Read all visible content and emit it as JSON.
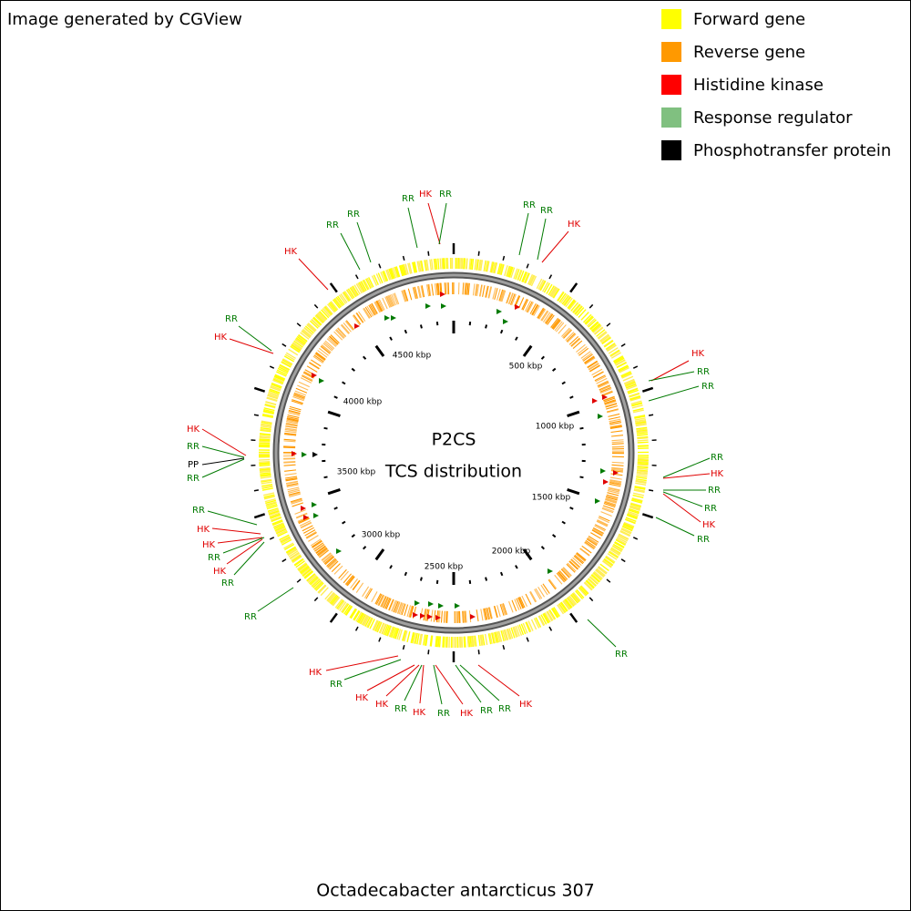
{
  "header": {
    "credit": "Image generated by CGView"
  },
  "legend": [
    {
      "label": "Forward gene",
      "color": "#ffff00"
    },
    {
      "label": "Reverse gene",
      "color": "#ff9900"
    },
    {
      "label": "Histidine kinase",
      "color": "#ff0000"
    },
    {
      "label": "Response regulator",
      "color": "#80c080"
    },
    {
      "label": "Phosphotransfer protein",
      "color": "#000000"
    }
  ],
  "center": {
    "title": "P2CS",
    "subtitle": "TCS distribution"
  },
  "axis_labels": [
    "500 kbp",
    "1000 kbp",
    "1500 kbp",
    "2000 kbp",
    "2500 kbp",
    "3000 kbp",
    "3500 kbp",
    "4000 kbp",
    "4500 kbp"
  ],
  "features": [
    {
      "label": "RR",
      "color": "#007a00"
    },
    {
      "label": "HK",
      "color": "#e00000"
    },
    {
      "label": "RR",
      "color": "#007a00"
    },
    {
      "label": "RR",
      "color": "#007a00"
    },
    {
      "label": "RR",
      "color": "#007a00"
    },
    {
      "label": "HK",
      "color": "#e00000"
    },
    {
      "label": "RR",
      "color": "#007a00"
    },
    {
      "label": "RR",
      "color": "#007a00"
    },
    {
      "label": "HK",
      "color": "#e00000"
    },
    {
      "label": "RR",
      "color": "#007a00"
    },
    {
      "label": "HK",
      "color": "#e00000"
    },
    {
      "label": "HK",
      "color": "#e00000"
    },
    {
      "label": "RR",
      "color": "#007a00"
    },
    {
      "label": "RR",
      "color": "#007a00"
    },
    {
      "label": "RR",
      "color": "#007a00"
    },
    {
      "label": "HK",
      "color": "#e00000"
    },
    {
      "label": "RR",
      "color": "#007a00"
    },
    {
      "label": "RR",
      "color": "#007a00"
    },
    {
      "label": "HK",
      "color": "#e00000"
    },
    {
      "label": "RR",
      "color": "#007a00"
    },
    {
      "label": "RR",
      "color": "#007a00"
    },
    {
      "label": "HK",
      "color": "#e00000"
    },
    {
      "label": "RR",
      "color": "#007a00"
    },
    {
      "label": "PP",
      "color": "#000000"
    },
    {
      "label": "RR",
      "color": "#007a00"
    },
    {
      "label": "RR",
      "color": "#007a00"
    },
    {
      "label": "HK",
      "color": "#e00000"
    },
    {
      "label": "HK",
      "color": "#e00000"
    },
    {
      "label": "RR",
      "color": "#007a00"
    },
    {
      "label": "HK",
      "color": "#e00000"
    },
    {
      "label": "RR",
      "color": "#007a00"
    },
    {
      "label": "RR",
      "color": "#007a00"
    },
    {
      "label": "HK",
      "color": "#e00000"
    },
    {
      "label": "RR",
      "color": "#007a00"
    },
    {
      "label": "HK",
      "color": "#e00000"
    },
    {
      "label": "HK",
      "color": "#e00000"
    },
    {
      "label": "RR",
      "color": "#007a00"
    },
    {
      "label": "HK",
      "color": "#e00000"
    },
    {
      "label": "RR",
      "color": "#007a00"
    },
    {
      "label": "HK",
      "color": "#e00000"
    },
    {
      "label": "RR",
      "color": "#007a00"
    },
    {
      "label": "RR",
      "color": "#007a00"
    },
    {
      "label": "HK",
      "color": "#e00000"
    }
  ],
  "footer": {
    "organism": "Octadecabacter antarcticus 307"
  }
}
